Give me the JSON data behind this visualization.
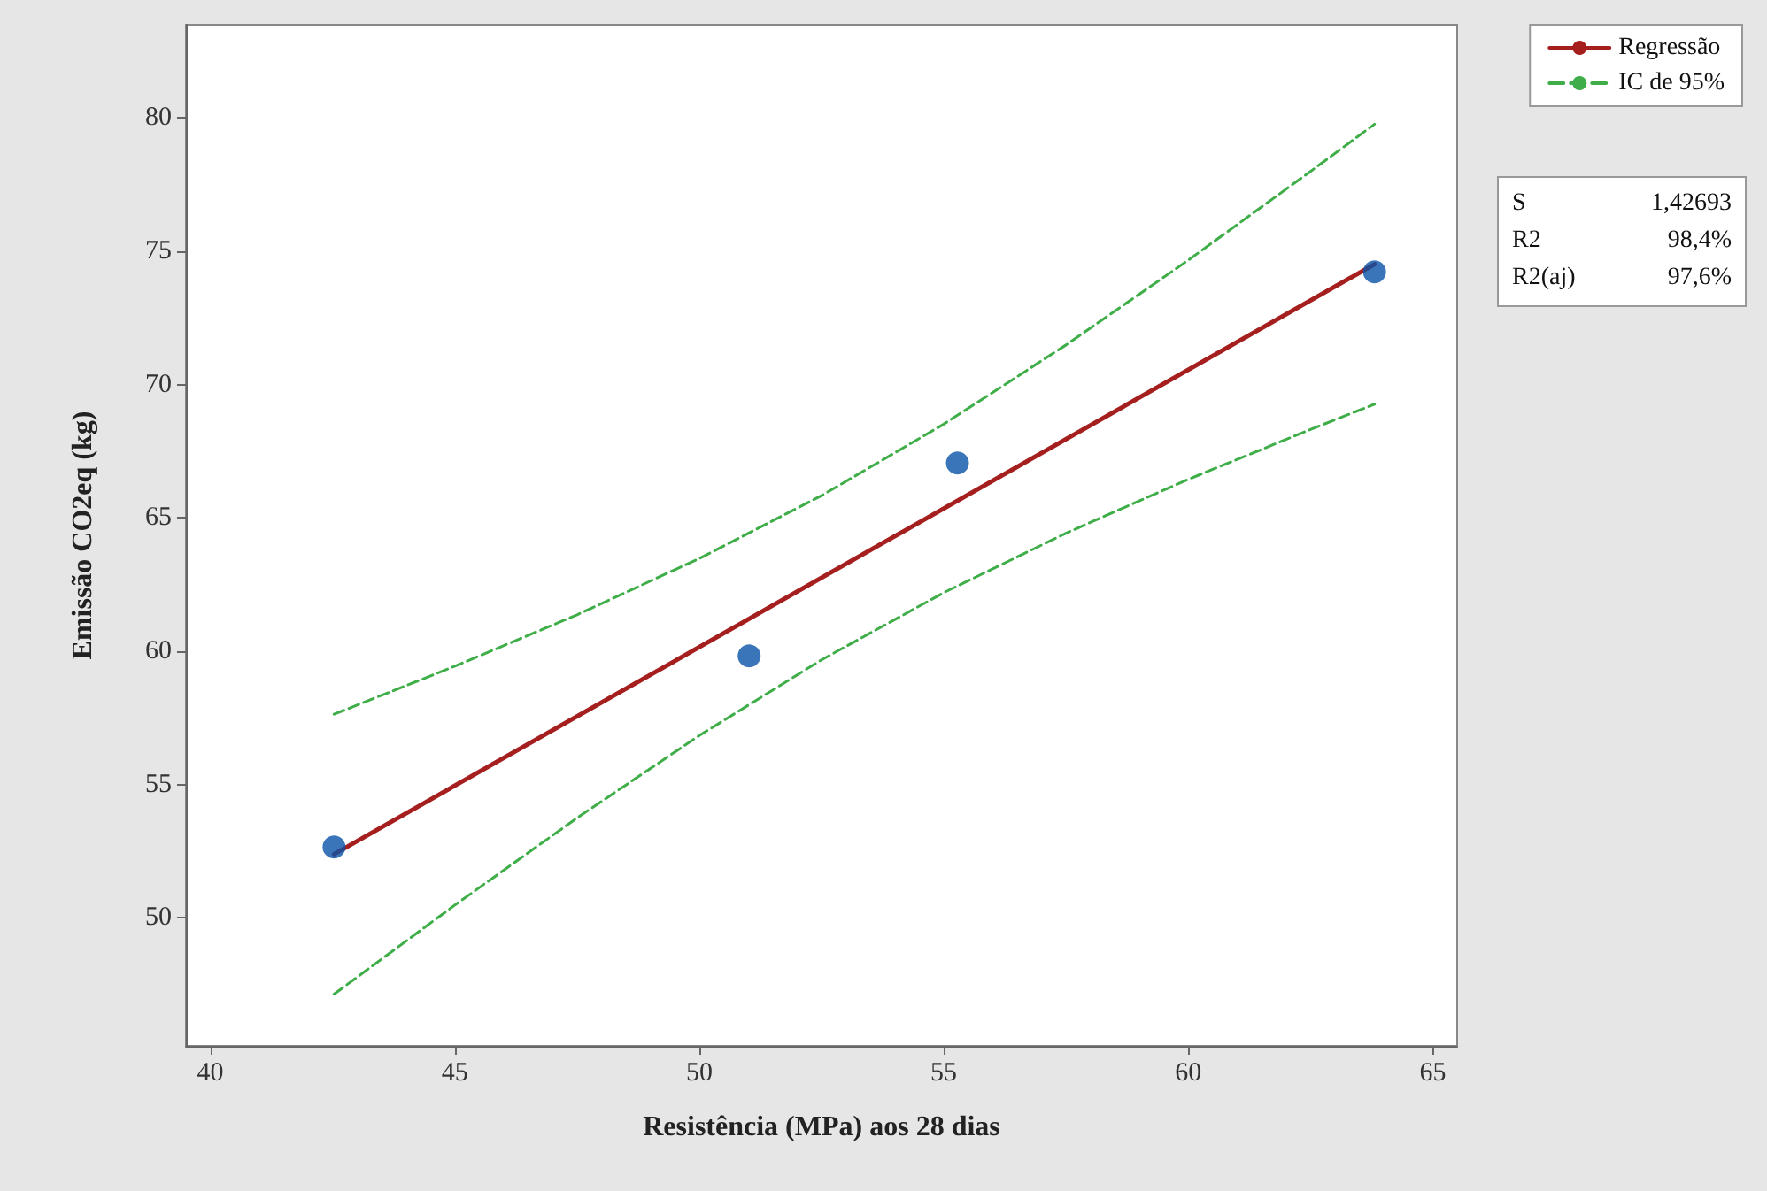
{
  "chart_data": {
    "type": "scatter",
    "xlabel": "Resistência (MPa) aos 28 dias",
    "ylabel": "Emissão CO2eq (kg)",
    "xlim": [
      39.5,
      65.5
    ],
    "xticks": [
      40,
      45,
      50,
      55,
      60,
      65
    ],
    "ylim": [
      45.2,
      83.5
    ],
    "yticks": [
      50,
      55,
      60,
      65,
      70,
      75,
      80
    ],
    "grid": false,
    "legend": "top right",
    "series": [
      {
        "marker": "circle",
        "color": "#0a53a8",
        "x": [
          42.53,
          51.02,
          55.28,
          63.81
        ],
        "values": [
          52.66,
          59.83,
          67.06,
          74.23
        ]
      },
      {
        "type": "line",
        "name": "Regressão",
        "marker": "none",
        "color": "#a51f1f",
        "line_style": "solid",
        "x": [
          42.53,
          63.81
        ],
        "values": [
          52.39,
          74.52
        ]
      },
      {
        "type": "line",
        "name": "IC de 95%",
        "marker": "none",
        "color": "#3fae49",
        "line_style": "dashed",
        "x": [
          42.53,
          45,
          47.5,
          50,
          52.5,
          55,
          57.5,
          60,
          62.5,
          63.81
        ],
        "values": [
          57.64,
          59.44,
          61.37,
          63.48,
          65.84,
          68.52,
          71.49,
          74.67,
          78.0,
          79.77
        ]
      },
      {
        "type": "line",
        "marker": "none",
        "color": "#3fae49",
        "line_style": "dashed",
        "x": [
          42.53,
          45,
          47.5,
          50,
          52.5,
          55,
          57.5,
          60,
          62.5,
          63.81
        ],
        "values": [
          47.14,
          50.48,
          53.75,
          56.84,
          59.68,
          62.2,
          64.43,
          66.45,
          68.32,
          69.27
        ]
      }
    ],
    "annotations": [
      "S 1,42693",
      "R2 98,4%",
      "R2(aj) 97,6%"
    ]
  }
}
